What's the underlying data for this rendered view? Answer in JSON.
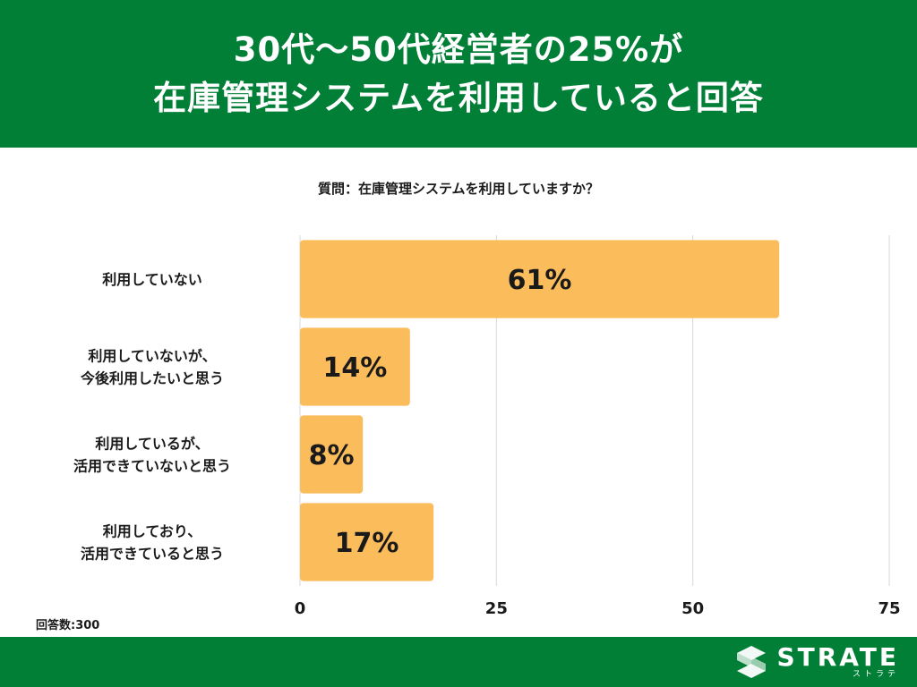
{
  "header": {
    "title_line1": "30代〜50代経営者の25%が",
    "title_line2": "在庫管理システムを利用していると回答"
  },
  "question": "質問：在庫管理システムを利用していますか？",
  "response_count": "回答数:300",
  "logo": {
    "text": "STRATE",
    "kana": "ストラテ"
  },
  "colors": {
    "header_bg": "#017f37",
    "bar": "#fbbc5c",
    "grid": "#d9d9d9",
    "text": "#1a1a1a"
  },
  "chart_data": {
    "type": "bar",
    "orientation": "horizontal",
    "categories": [
      [
        "利用していない"
      ],
      [
        "利用していないが、",
        "今後利用したいと思う"
      ],
      [
        "利用しているが、",
        "活用できていないと思う"
      ],
      [
        "利用しており、",
        "活用できていると思う"
      ]
    ],
    "values": [
      61,
      14,
      8,
      17
    ],
    "value_labels": [
      "61%",
      "14%",
      "8%",
      "17%"
    ],
    "x_ticks": [
      "0",
      "25",
      "50",
      "75"
    ],
    "xlim": [
      0,
      75
    ],
    "grid": true
  }
}
